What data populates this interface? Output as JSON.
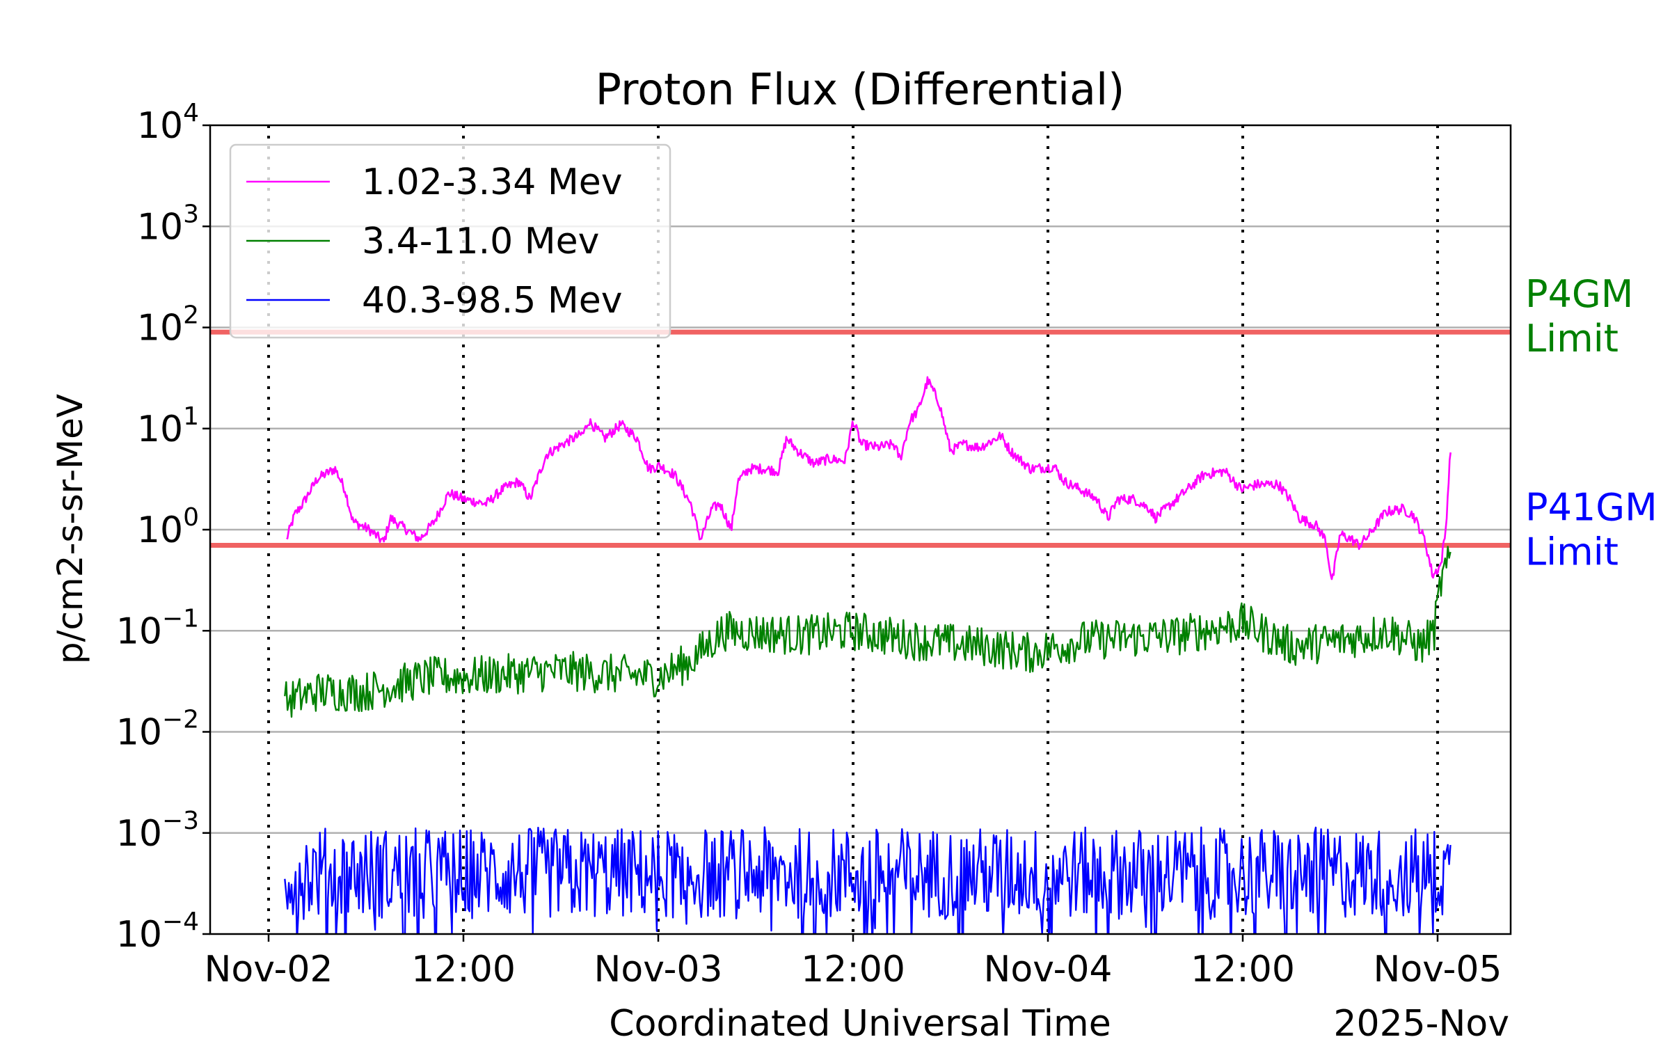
{
  "chart_data": {
    "type": "line",
    "title": "Proton Flux (Differential)",
    "xlabel": "Coordinated Universal Time",
    "xlabel_secondary": "2025-Nov",
    "ylabel": "p/cm2-s-sr-MeV",
    "yscale": "log",
    "ylim": [
      0.0001,
      10000
    ],
    "x_units": "hours since 2025-11-02 00:00 UTC",
    "xlim": [
      -3.6,
      76.5
    ],
    "grid": "horizontal at decades",
    "legend_position": "top-left",
    "xticks": [
      {
        "hour": 0,
        "label": "Nov-02"
      },
      {
        "hour": 12,
        "label": "12:00"
      },
      {
        "hour": 24,
        "label": "Nov-03"
      },
      {
        "hour": 36,
        "label": "12:00"
      },
      {
        "hour": 48,
        "label": "Nov-04"
      },
      {
        "hour": 60,
        "label": "12:00"
      },
      {
        "hour": 72,
        "label": "Nov-05"
      }
    ],
    "yticks": [
      {
        "value": 10000,
        "base": "10",
        "exp": "4"
      },
      {
        "value": 1000,
        "base": "10",
        "exp": "3"
      },
      {
        "value": 100,
        "base": "10",
        "exp": "2"
      },
      {
        "value": 10,
        "base": "10",
        "exp": "1"
      },
      {
        "value": 1,
        "base": "10",
        "exp": "0"
      },
      {
        "value": 0.1,
        "base": "10",
        "exp": "−1"
      },
      {
        "value": 0.01,
        "base": "10",
        "exp": "−2"
      },
      {
        "value": 0.001,
        "base": "10",
        "exp": "−3"
      },
      {
        "value": 0.0001,
        "base": "10",
        "exp": "−4"
      }
    ],
    "thresholds": [
      {
        "name": "P4GM",
        "label_line1": "P4GM",
        "label_line2": "Limit",
        "value": 90,
        "line_color": "#f06262",
        "label_color": "#008000"
      },
      {
        "name": "P41GM",
        "label_line1": "P41GM",
        "label_line2": "Limit",
        "value": 0.7,
        "line_color": "#f06262",
        "label_color": "#0000ff"
      }
    ],
    "series": [
      {
        "name": "1.02-3.34 Mev",
        "color": "#ff00ff",
        "noise_log10": 0.05,
        "points": [
          [
            1.1,
            0.8
          ],
          [
            1.6,
            1.4
          ],
          [
            2.1,
            1.8
          ],
          [
            3.0,
            3.2
          ],
          [
            4.1,
            4.0
          ],
          [
            4.7,
            2.5
          ],
          [
            5.2,
            1.2
          ],
          [
            6.2,
            1.0
          ],
          [
            7.1,
            0.75
          ],
          [
            7.5,
            1.3
          ],
          [
            8.5,
            1.0
          ],
          [
            9.3,
            0.8
          ],
          [
            10.2,
            1.2
          ],
          [
            11.1,
            2.3
          ],
          [
            12.0,
            2.0
          ],
          [
            13.4,
            1.8
          ],
          [
            14.4,
            2.5
          ],
          [
            15.4,
            3.0
          ],
          [
            16.1,
            2.0
          ],
          [
            17.1,
            5.5
          ],
          [
            18.1,
            7
          ],
          [
            19.4,
            9
          ],
          [
            19.7,
            12
          ],
          [
            20.7,
            8
          ],
          [
            21.7,
            11
          ],
          [
            22.7,
            8
          ],
          [
            23.4,
            4
          ],
          [
            24.1,
            4.3
          ],
          [
            25.0,
            3.5
          ],
          [
            26.0,
            1.8
          ],
          [
            26.6,
            0.8
          ],
          [
            27.3,
            1.6
          ],
          [
            27.8,
            1.8
          ],
          [
            28.5,
            1.0
          ],
          [
            28.9,
            3.0
          ],
          [
            29.6,
            4.0
          ],
          [
            30.5,
            4.0
          ],
          [
            31.4,
            3.8
          ],
          [
            31.9,
            8.0
          ],
          [
            32.6,
            6.0
          ],
          [
            33.6,
            4.5
          ],
          [
            34.5,
            5
          ],
          [
            35.5,
            4.8
          ],
          [
            36.0,
            12
          ],
          [
            36.5,
            7
          ],
          [
            37.5,
            6.5
          ],
          [
            38.5,
            7
          ],
          [
            38.9,
            5
          ],
          [
            39.5,
            12
          ],
          [
            40.0,
            15
          ],
          [
            40.6,
            30
          ],
          [
            41.3,
            18
          ],
          [
            42.0,
            6
          ],
          [
            42.8,
            7
          ],
          [
            43.8,
            6.5
          ],
          [
            45.1,
            8.5
          ],
          [
            45.7,
            6
          ],
          [
            46.9,
            4
          ],
          [
            48.4,
            4.2
          ],
          [
            49.0,
            3
          ],
          [
            50.0,
            2.5
          ],
          [
            51.0,
            2.0
          ],
          [
            51.7,
            1.3
          ],
          [
            52.3,
            2.0
          ],
          [
            53.3,
            2.0
          ],
          [
            54.3,
            1.6
          ],
          [
            54.6,
            1.3
          ],
          [
            55.6,
            1.8
          ],
          [
            56.6,
            2.5
          ],
          [
            57.6,
            3.5
          ],
          [
            58.9,
            3.8
          ],
          [
            59.9,
            2.5
          ],
          [
            60.9,
            2.8
          ],
          [
            62.2,
            2.8
          ],
          [
            62.9,
            2.0
          ],
          [
            63.5,
            1.3
          ],
          [
            64.5,
            1.1
          ],
          [
            65.1,
            0.8
          ],
          [
            65.5,
            0.3
          ],
          [
            66.0,
            0.9
          ],
          [
            66.7,
            0.8
          ],
          [
            67.2,
            0.7
          ],
          [
            67.8,
            0.9
          ],
          [
            68.8,
            1.5
          ],
          [
            69.8,
            1.6
          ],
          [
            70.5,
            1.4
          ],
          [
            71.2,
            0.8
          ],
          [
            71.7,
            0.35
          ],
          [
            72.2,
            0.45
          ],
          [
            72.5,
            1.0
          ],
          [
            72.8,
            6.5
          ]
        ]
      },
      {
        "name": "3.4-11.0 Mev",
        "color": "#008000",
        "noise_log10": 0.2,
        "points": [
          [
            1,
            0.02
          ],
          [
            3,
            0.025
          ],
          [
            6,
            0.025
          ],
          [
            10,
            0.035
          ],
          [
            12,
            0.035
          ],
          [
            18,
            0.04
          ],
          [
            24,
            0.035
          ],
          [
            26,
            0.05
          ],
          [
            28,
            0.1
          ],
          [
            33,
            0.09
          ],
          [
            36,
            0.1
          ],
          [
            40,
            0.08
          ],
          [
            44,
            0.07
          ],
          [
            47,
            0.06
          ],
          [
            50,
            0.08
          ],
          [
            56,
            0.09
          ],
          [
            60,
            0.12
          ],
          [
            63,
            0.07
          ],
          [
            66,
            0.08
          ],
          [
            69,
            0.1
          ],
          [
            71,
            0.07
          ],
          [
            71.8,
            0.1
          ],
          [
            72.2,
            0.3
          ],
          [
            72.8,
            0.5
          ]
        ]
      },
      {
        "name": "40.3-98.5 Mev",
        "color": "#0000ff",
        "noise_log10": 0.35,
        "points": [
          [
            1,
            0.0004
          ],
          [
            72.8,
            0.0004
          ]
        ]
      }
    ]
  }
}
